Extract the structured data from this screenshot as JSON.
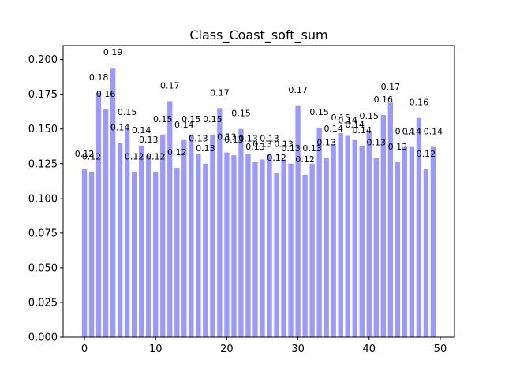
{
  "chart_data": {
    "type": "bar",
    "title": "Class_Coast_soft_sum",
    "xlabel": "",
    "ylabel": "",
    "bar_color": "#9999ff",
    "xlim": [
      -3,
      52
    ],
    "ylim": [
      0,
      0.21
    ],
    "x_ticks": [
      0,
      10,
      20,
      30,
      40,
      50
    ],
    "y_ticks": [
      0.0,
      0.025,
      0.05,
      0.075,
      0.1,
      0.125,
      0.15,
      0.175,
      0.2
    ],
    "y_tick_labels": [
      "0.000",
      "0.025",
      "0.050",
      "0.075",
      "0.100",
      "0.125",
      "0.150",
      "0.175",
      "0.200"
    ],
    "x_tick_labels": [
      "0",
      "10",
      "20",
      "30",
      "40",
      "50"
    ],
    "x": [
      0,
      1,
      2,
      3,
      4,
      5,
      6,
      7,
      8,
      9,
      10,
      11,
      12,
      13,
      14,
      15,
      16,
      17,
      18,
      19,
      20,
      21,
      22,
      23,
      24,
      25,
      26,
      27,
      28,
      29,
      30,
      31,
      32,
      33,
      34,
      35,
      36,
      37,
      38,
      39,
      40,
      41,
      42,
      43,
      44,
      45,
      46,
      47,
      48,
      49
    ],
    "values": [
      0.121,
      0.119,
      0.176,
      0.164,
      0.194,
      0.14,
      0.151,
      0.119,
      0.138,
      0.131,
      0.119,
      0.146,
      0.17,
      0.122,
      0.142,
      0.146,
      0.132,
      0.125,
      0.146,
      0.165,
      0.133,
      0.131,
      0.15,
      0.132,
      0.126,
      0.128,
      0.132,
      0.118,
      0.128,
      0.125,
      0.167,
      0.117,
      0.125,
      0.151,
      0.129,
      0.139,
      0.147,
      0.145,
      0.142,
      0.138,
      0.148,
      0.129,
      0.16,
      0.169,
      0.126,
      0.137,
      0.137,
      0.158,
      0.121,
      0.137
    ],
    "labels": [
      "0.12",
      "0.12",
      "0.18",
      "0.16",
      "0.19",
      "0.14",
      "0.15",
      "0.12",
      "0.14",
      "0.13",
      "0.12",
      "0.15",
      "0.17",
      "0.12",
      "0.14",
      "0.15",
      "0.13",
      "0.13",
      "0.15",
      "0.17",
      "0.13",
      "0.13",
      "0.15",
      "0.13",
      "0.13",
      "0.13",
      "0.13",
      "0.12",
      "0.13",
      "0.13",
      "0.17",
      "0.12",
      "0.13",
      "0.15",
      "0.13",
      "0.14",
      "0.15",
      "0.14",
      "0.14",
      "0.14",
      "0.15",
      "0.13",
      "0.16",
      "0.17",
      "0.13",
      "0.14",
      "0.14",
      "0.16",
      "0.12",
      "0.14"
    ]
  }
}
